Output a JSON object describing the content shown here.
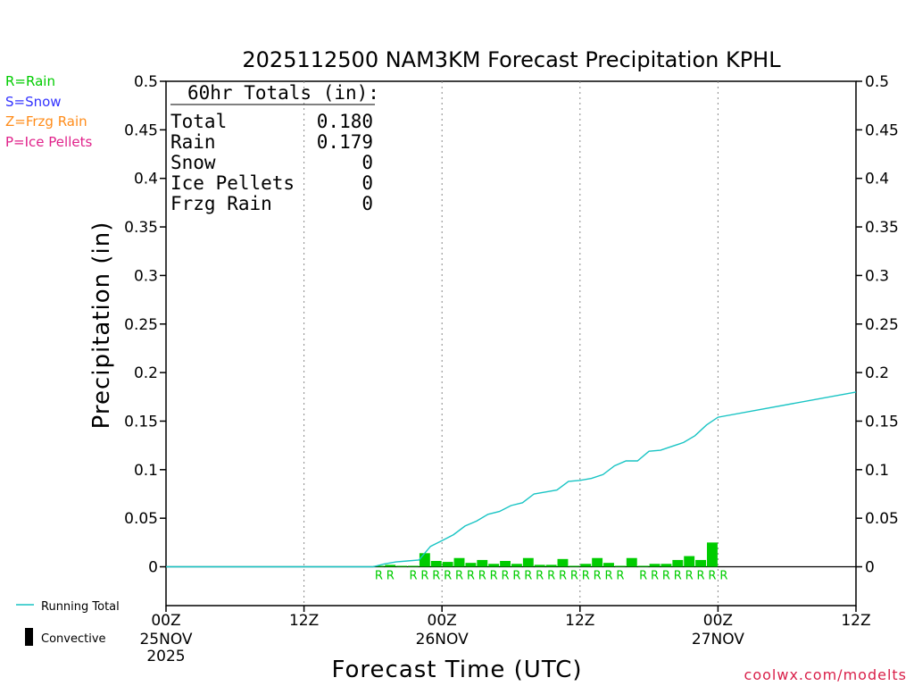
{
  "chart_data": {
    "type": "bar",
    "title": "2025112500 NAM3KM Forecast Precipitation KPHL",
    "xlabel": "Forecast Time (UTC)",
    "ylabel": "Precipitation (in)",
    "ylim": [
      -0.04,
      0.5
    ],
    "yticks": [
      "0",
      "0.05",
      "0.1",
      "0.15",
      "0.2",
      "0.25",
      "0.3",
      "0.35",
      "0.4",
      "0.45",
      "0.5"
    ],
    "xlim_hours": [
      0,
      60
    ],
    "xticks": [
      {
        "hour": 0,
        "label": "00Z",
        "sub": "25NOV",
        "sub2": "2025"
      },
      {
        "hour": 12,
        "label": "12Z",
        "sub": "",
        "sub2": ""
      },
      {
        "hour": 24,
        "label": "00Z",
        "sub": "26NOV",
        "sub2": ""
      },
      {
        "hour": 36,
        "label": "12Z",
        "sub": "",
        "sub2": ""
      },
      {
        "hour": 48,
        "label": "00Z",
        "sub": "27NOV",
        "sub2": ""
      },
      {
        "hour": 60,
        "label": "12Z",
        "sub": "",
        "sub2": ""
      }
    ],
    "series": [
      {
        "name": "Rain (hourly)",
        "color": "#00cc00",
        "hours": [
          19,
          20,
          21,
          22,
          23,
          24,
          25,
          26,
          27,
          28,
          29,
          30,
          31,
          32,
          33,
          34,
          35,
          36,
          37,
          38,
          39,
          40,
          41,
          42,
          43,
          44,
          45,
          46,
          47,
          48,
          49
        ],
        "values": [
          0.001,
          0.002,
          0.001,
          0.001,
          0.014,
          0.006,
          0.005,
          0.009,
          0.004,
          0.007,
          0.003,
          0.006,
          0.003,
          0.009,
          0.002,
          0.002,
          0.008,
          0.001,
          0.003,
          0.009,
          0.004,
          0.001,
          0.009,
          0.001,
          0.003,
          0.003,
          0.007,
          0.011,
          0.007,
          0.025,
          0.0
        ]
      },
      {
        "name": "Running Total",
        "color": "#19c4c4",
        "hours": [
          0,
          18,
          19,
          20,
          21,
          22,
          23,
          24,
          25,
          26,
          27,
          28,
          29,
          30,
          31,
          32,
          33,
          34,
          35,
          36,
          37,
          38,
          39,
          40,
          41,
          42,
          43,
          44,
          45,
          46,
          47,
          48,
          60
        ],
        "values": [
          0,
          0,
          0.003,
          0.005,
          0.006,
          0.007,
          0.021,
          0.027,
          0.033,
          0.042,
          0.047,
          0.054,
          0.057,
          0.063,
          0.066,
          0.075,
          0.077,
          0.079,
          0.088,
          0.089,
          0.091,
          0.095,
          0.104,
          0.109,
          0.109,
          0.119,
          0.12,
          0.124,
          0.128,
          0.135,
          0.146,
          0.154,
          0.18
        ]
      }
    ],
    "ptype_labels": {
      "symbol": "R",
      "hours": [
        19,
        20,
        22,
        23,
        24,
        25,
        26,
        27,
        28,
        29,
        30,
        31,
        32,
        33,
        34,
        35,
        36,
        37,
        38,
        39,
        40,
        42,
        43,
        44,
        45,
        46,
        47,
        48,
        49
      ]
    },
    "legend": {
      "rain": "R=Rain",
      "snow": "S=Snow",
      "frzg": "Z=Frzg Rain",
      "ice": "P=Ice Pellets",
      "running_total": "Running Total",
      "convective": "Convective"
    },
    "legend_colors": {
      "rain": "#00cc00",
      "snow": "#3333ff",
      "frzg": "#ff8c1a",
      "ice": "#e0218a",
      "running_total": "#19c4c4",
      "convective": "#000000"
    },
    "totals": {
      "header": "60hr Totals (in):",
      "rows": [
        {
          "label": "Total",
          "value": "0.180"
        },
        {
          "label": "Rain",
          "value": "0.179"
        },
        {
          "label": "Snow",
          "value": "0"
        },
        {
          "label": "Ice Pellets",
          "value": "0"
        },
        {
          "label": "Frzg Rain",
          "value": "0"
        }
      ]
    },
    "credit": "coolwx.com/modelts"
  }
}
